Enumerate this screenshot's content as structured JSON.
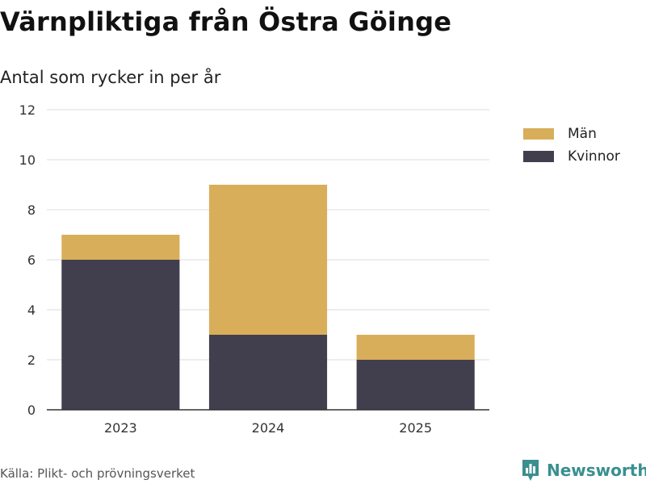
{
  "header": {
    "title": "Värnpliktiga från Östra Göinge",
    "subtitle": "Antal som rycker in per år"
  },
  "chart_data": {
    "type": "bar",
    "stacked": true,
    "categories": [
      "2023",
      "2024",
      "2025"
    ],
    "series": [
      {
        "name": "Kvinnor",
        "values": [
          6,
          3,
          2
        ],
        "color": "#413f4e"
      },
      {
        "name": "Män",
        "values": [
          1,
          6,
          1
        ],
        "color": "#d8ae5a"
      }
    ],
    "ylim": [
      0,
      12
    ],
    "yticks": [
      0,
      2,
      4,
      6,
      8,
      10,
      12
    ],
    "grid": true,
    "legend_position": "right"
  },
  "legend": {
    "items": [
      {
        "label": "Män",
        "color": "#d8ae5a"
      },
      {
        "label": "Kvinnor",
        "color": "#413f4e"
      }
    ]
  },
  "footer": {
    "source": "Källa: Plikt- och prövningsverket",
    "brand": "Newsworthy",
    "brand_icon": "bar-chart-badge-icon",
    "brand_color": "#3a8f8f"
  }
}
